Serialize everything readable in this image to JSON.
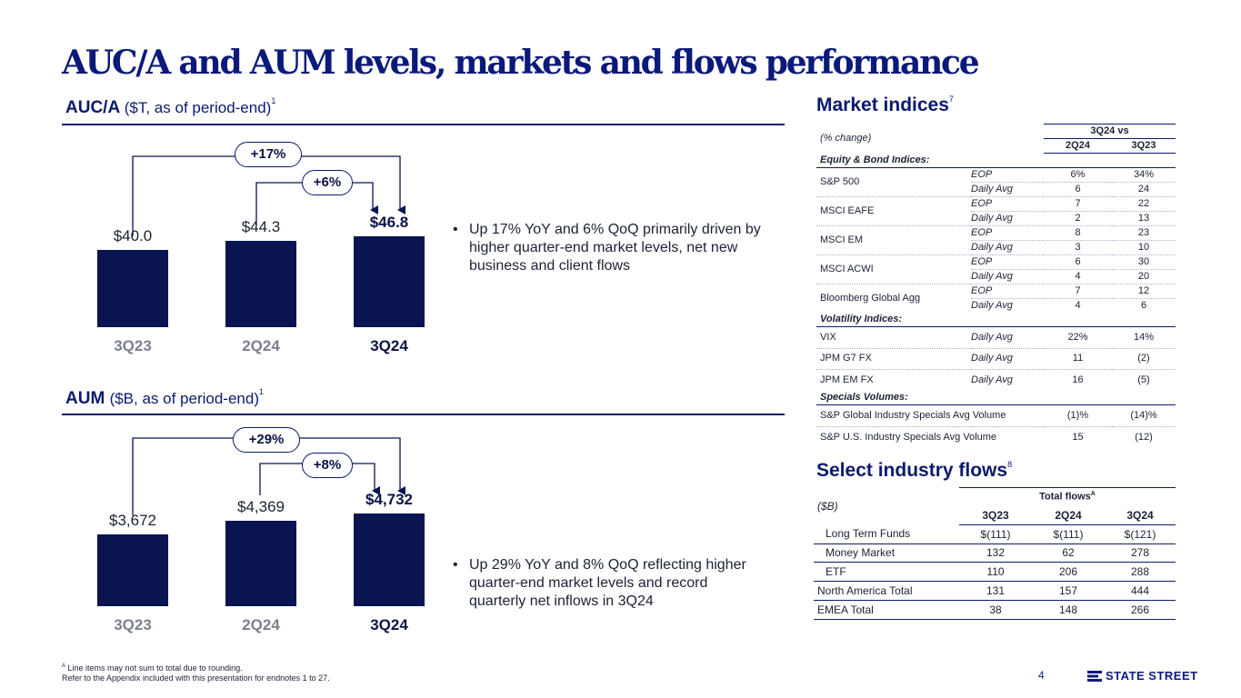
{
  "title": "AUC/A and AUM levels, markets and flows performance",
  "auca": {
    "head_bold": "AUC/A",
    "head_sub": "($T, as of period-end)",
    "note": "1",
    "change_yoy": "+17%",
    "change_qoq": "+6%",
    "bullet": "Up 17% YoY and 6% QoQ primarily driven by higher quarter-end market levels, net new business and client flows",
    "chart_data": {
      "type": "bar",
      "categories": [
        "3Q23",
        "2Q24",
        "3Q24"
      ],
      "values": [
        40.0,
        44.3,
        46.8
      ],
      "labels": [
        "$40.0",
        "$44.3",
        "$46.8"
      ],
      "ylabel": "$T"
    }
  },
  "aum": {
    "head_bold": "AUM",
    "head_sub": "($B, as of period-end)",
    "note": "1",
    "change_yoy": "+29%",
    "change_qoq": "+8%",
    "bullet": "Up 29% YoY and 8% QoQ reflecting higher quarter-end market levels and record quarterly net inflows in 3Q24",
    "chart_data": {
      "type": "bar",
      "categories": [
        "3Q23",
        "2Q24",
        "3Q24"
      ],
      "values": [
        3672,
        4369,
        4732
      ],
      "labels": [
        "$3,672",
        "$4,369",
        "$4,732"
      ],
      "ylabel": "$B"
    }
  },
  "market": {
    "head": "Market indices",
    "note": "7",
    "change_label": "(% change)",
    "vs_label": "3Q24 vs",
    "col1": "2Q24",
    "col2": "3Q23",
    "eq_section": "Equity & Bond Indices:",
    "eq_rows": [
      {
        "name": "S&P 500",
        "a_type": "EOP",
        "a1": "6%",
        "a2": "34%",
        "b_type": "Daily Avg",
        "b1": "6",
        "b2": "24"
      },
      {
        "name": "MSCI EAFE",
        "a_type": "EOP",
        "a1": "7",
        "a2": "22",
        "b_type": "Daily Avg",
        "b1": "2",
        "b2": "13"
      },
      {
        "name": "MSCI EM",
        "a_type": "EOP",
        "a1": "8",
        "a2": "23",
        "b_type": "Daily Avg",
        "b1": "3",
        "b2": "10"
      },
      {
        "name": "MSCI ACWI",
        "a_type": "EOP",
        "a1": "6",
        "a2": "30",
        "b_type": "Daily Avg",
        "b1": "4",
        "b2": "20"
      },
      {
        "name": "Bloomberg Global Agg",
        "a_type": "EOP",
        "a1": "7",
        "a2": "12",
        "b_type": "Daily Avg",
        "b1": "4",
        "b2": "6"
      }
    ],
    "vol_section": "Volatility Indices:",
    "vol_rows": [
      {
        "name": "VIX",
        "type": "Daily Avg",
        "v1": "22%",
        "v2": "14%"
      },
      {
        "name": "JPM G7 FX",
        "type": "Daily Avg",
        "v1": "11",
        "v2": "(2)"
      },
      {
        "name": "JPM EM FX",
        "type": "Daily Avg",
        "v1": "16",
        "v2": "(5)"
      }
    ],
    "spec_section": "Specials Volumes:",
    "spec_rows": [
      {
        "name": "S&P Global Industry Specials Avg Volume",
        "v1": "(1)%",
        "v2": "(14)%"
      },
      {
        "name": "S&P U.S. Industry Specials Avg Volume",
        "v1": "15",
        "v2": "(12)"
      }
    ]
  },
  "flows": {
    "head": "Select industry flows",
    "note": "8",
    "unit": "($B)",
    "total_label": "Total flows",
    "total_sup": "A",
    "cols": [
      "3Q23",
      "2Q24",
      "3Q24"
    ],
    "rows": [
      {
        "name": "Long Term Funds",
        "v": [
          "$(111)",
          "$(111)",
          "$(121)"
        ]
      },
      {
        "name": "Money Market",
        "v": [
          "132",
          "62",
          "278"
        ]
      },
      {
        "name": "ETF",
        "v": [
          "110",
          "206",
          "288"
        ]
      },
      {
        "name": "North America Total",
        "v": [
          "131",
          "157",
          "444"
        ]
      },
      {
        "name": "EMEA Total",
        "v": [
          "38",
          "148",
          "266"
        ]
      }
    ]
  },
  "footer": {
    "line1_sup": "A",
    "line1": "Line items may not sum to total due to rounding.",
    "line2": "Refer to the Appendix included with this presentation for endnotes 1 to 27.",
    "page": "4",
    "logo": "STATE STREET"
  },
  "colors": {
    "navy": "#0a1450",
    "accent": "#0b1a7a",
    "grey_label": "#7b808e"
  }
}
